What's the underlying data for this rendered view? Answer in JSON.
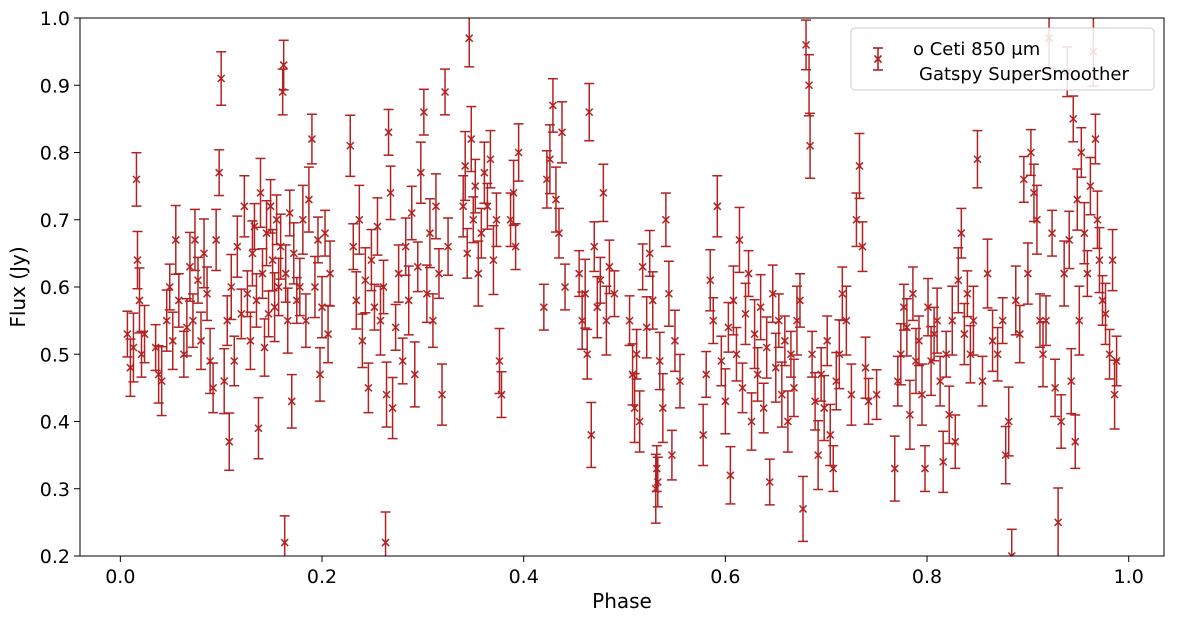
{
  "chart_data": {
    "type": "scatter",
    "xlabel": "Phase",
    "ylabel": "Flux (Jy)",
    "xlim": [
      -0.04,
      1.035
    ],
    "ylim": [
      0.2,
      1.0
    ],
    "xticks": [
      "0.0",
      "0.2",
      "0.4",
      "0.6",
      "0.8",
      "1.0"
    ],
    "yticks": [
      "0.2",
      "0.3",
      "0.4",
      "0.5",
      "0.6",
      "0.7",
      "0.8",
      "0.9",
      "1.0"
    ],
    "grid": false,
    "legend": {
      "placement": "top-right",
      "entries": [
        "o Ceti 850 μm",
        "Gatspy SuperSmoother"
      ]
    },
    "marker": "x",
    "error_bar_typical": 0.04,
    "series": [
      {
        "name": "o Ceti 850 μm",
        "color": "#b22222",
        "points": [
          [
            0.007,
            0.53
          ],
          [
            0.01,
            0.48
          ],
          [
            0.013,
            0.51
          ],
          [
            0.016,
            0.76
          ],
          [
            0.017,
            0.64
          ],
          [
            0.019,
            0.58
          ],
          [
            0.021,
            0.5
          ],
          [
            0.024,
            0.53
          ],
          [
            0.035,
            0.51
          ],
          [
            0.038,
            0.47
          ],
          [
            0.041,
            0.46
          ],
          [
            0.046,
            0.55
          ],
          [
            0.049,
            0.6
          ],
          [
            0.052,
            0.52
          ],
          [
            0.055,
            0.67
          ],
          [
            0.058,
            0.58
          ],
          [
            0.063,
            0.5
          ],
          [
            0.066,
            0.54
          ],
          [
            0.069,
            0.63
          ],
          [
            0.072,
            0.55
          ],
          [
            0.074,
            0.67
          ],
          [
            0.077,
            0.61
          ],
          [
            0.08,
            0.52
          ],
          [
            0.083,
            0.65
          ],
          [
            0.086,
            0.59
          ],
          [
            0.089,
            0.49
          ],
          [
            0.092,
            0.45
          ],
          [
            0.095,
            0.67
          ],
          [
            0.098,
            0.77
          ],
          [
            0.1,
            0.91
          ],
          [
            0.103,
            0.46
          ],
          [
            0.106,
            0.55
          ],
          [
            0.108,
            0.37
          ],
          [
            0.11,
            0.6
          ],
          [
            0.113,
            0.49
          ],
          [
            0.116,
            0.66
          ],
          [
            0.12,
            0.56
          ],
          [
            0.123,
            0.72
          ],
          [
            0.126,
            0.59
          ],
          [
            0.129,
            0.52
          ],
          [
            0.131,
            0.65
          ],
          [
            0.133,
            0.69
          ],
          [
            0.135,
            0.58
          ],
          [
            0.137,
            0.39
          ],
          [
            0.139,
            0.74
          ],
          [
            0.141,
            0.62
          ],
          [
            0.143,
            0.51
          ],
          [
            0.145,
            0.68
          ],
          [
            0.147,
            0.56
          ],
          [
            0.149,
            0.72
          ],
          [
            0.151,
            0.64
          ],
          [
            0.153,
            0.57
          ],
          [
            0.155,
            0.7
          ],
          [
            0.157,
            0.6
          ],
          [
            0.159,
            0.66
          ],
          [
            0.161,
            0.89
          ],
          [
            0.162,
            0.93
          ],
          [
            0.163,
            0.22
          ],
          [
            0.164,
            0.62
          ],
          [
            0.166,
            0.55
          ],
          [
            0.168,
            0.71
          ],
          [
            0.17,
            0.43
          ],
          [
            0.172,
            0.65
          ],
          [
            0.175,
            0.58
          ],
          [
            0.178,
            0.6
          ],
          [
            0.181,
            0.7
          ],
          [
            0.184,
            0.55
          ],
          [
            0.187,
            0.73
          ],
          [
            0.19,
            0.82
          ],
          [
            0.193,
            0.6
          ],
          [
            0.196,
            0.67
          ],
          [
            0.198,
            0.47
          ],
          [
            0.2,
            0.57
          ],
          [
            0.203,
            0.68
          ],
          [
            0.206,
            0.53
          ],
          [
            0.208,
            0.62
          ],
          [
            0.228,
            0.81
          ],
          [
            0.231,
            0.66
          ],
          [
            0.234,
            0.58
          ],
          [
            0.237,
            0.7
          ],
          [
            0.24,
            0.52
          ],
          [
            0.243,
            0.61
          ],
          [
            0.246,
            0.45
          ],
          [
            0.249,
            0.64
          ],
          [
            0.252,
            0.57
          ],
          [
            0.255,
            0.69
          ],
          [
            0.258,
            0.55
          ],
          [
            0.261,
            0.6
          ],
          [
            0.263,
            0.22
          ],
          [
            0.264,
            0.44
          ],
          [
            0.266,
            0.83
          ],
          [
            0.268,
            0.74
          ],
          [
            0.27,
            0.42
          ],
          [
            0.273,
            0.54
          ],
          [
            0.276,
            0.62
          ],
          [
            0.28,
            0.49
          ],
          [
            0.283,
            0.66
          ],
          [
            0.286,
            0.58
          ],
          [
            0.289,
            0.71
          ],
          [
            0.292,
            0.47
          ],
          [
            0.295,
            0.63
          ],
          [
            0.298,
            0.77
          ],
          [
            0.301,
            0.86
          ],
          [
            0.304,
            0.59
          ],
          [
            0.307,
            0.68
          ],
          [
            0.31,
            0.55
          ],
          [
            0.313,
            0.72
          ],
          [
            0.316,
            0.62
          ],
          [
            0.319,
            0.44
          ],
          [
            0.322,
            0.89
          ],
          [
            0.325,
            0.66
          ],
          [
            0.34,
            0.72
          ],
          [
            0.342,
            0.78
          ],
          [
            0.344,
            0.65
          ],
          [
            0.346,
            0.97
          ],
          [
            0.348,
            0.82
          ],
          [
            0.35,
            0.7
          ],
          [
            0.352,
            0.75
          ],
          [
            0.355,
            0.62
          ],
          [
            0.358,
            0.68
          ],
          [
            0.361,
            0.77
          ],
          [
            0.364,
            0.72
          ],
          [
            0.367,
            0.79
          ],
          [
            0.37,
            0.64
          ],
          [
            0.373,
            0.7
          ],
          [
            0.376,
            0.49
          ],
          [
            0.378,
            0.44
          ],
          [
            0.387,
            0.7
          ],
          [
            0.39,
            0.74
          ],
          [
            0.392,
            0.66
          ],
          [
            0.395,
            0.8
          ],
          [
            0.42,
            0.57
          ],
          [
            0.423,
            0.76
          ],
          [
            0.426,
            0.79
          ],
          [
            0.429,
            0.87
          ],
          [
            0.432,
            0.73
          ],
          [
            0.435,
            0.68
          ],
          [
            0.438,
            0.83
          ],
          [
            0.441,
            0.6
          ],
          [
            0.455,
            0.62
          ],
          [
            0.458,
            0.55
          ],
          [
            0.461,
            0.59
          ],
          [
            0.463,
            0.5
          ],
          [
            0.465,
            0.86
          ],
          [
            0.467,
            0.38
          ],
          [
            0.47,
            0.66
          ],
          [
            0.473,
            0.57
          ],
          [
            0.476,
            0.61
          ],
          [
            0.479,
            0.74
          ],
          [
            0.482,
            0.55
          ],
          [
            0.485,
            0.63
          ],
          [
            0.49,
            0.59
          ],
          [
            0.505,
            0.55
          ],
          [
            0.508,
            0.47
          ],
          [
            0.51,
            0.42
          ],
          [
            0.512,
            0.5
          ],
          [
            0.515,
            0.4
          ],
          [
            0.518,
            0.63
          ],
          [
            0.522,
            0.54
          ],
          [
            0.525,
            0.65
          ],
          [
            0.528,
            0.58
          ],
          [
            0.531,
            0.3
          ],
          [
            0.532,
            0.33
          ],
          [
            0.533,
            0.31
          ],
          [
            0.535,
            0.49
          ],
          [
            0.538,
            0.42
          ],
          [
            0.541,
            0.7
          ],
          [
            0.544,
            0.59
          ],
          [
            0.547,
            0.35
          ],
          [
            0.55,
            0.52
          ],
          [
            0.555,
            0.46
          ],
          [
            0.578,
            0.38
          ],
          [
            0.581,
            0.47
          ],
          [
            0.585,
            0.61
          ],
          [
            0.588,
            0.55
          ],
          [
            0.592,
            0.72
          ],
          [
            0.596,
            0.49
          ],
          [
            0.6,
            0.43
          ],
          [
            0.603,
            0.54
          ],
          [
            0.605,
            0.32
          ],
          [
            0.608,
            0.58
          ],
          [
            0.611,
            0.5
          ],
          [
            0.614,
            0.67
          ],
          [
            0.617,
            0.45
          ],
          [
            0.62,
            0.56
          ],
          [
            0.623,
            0.62
          ],
          [
            0.626,
            0.4
          ],
          [
            0.629,
            0.53
          ],
          [
            0.632,
            0.47
          ],
          [
            0.635,
            0.57
          ],
          [
            0.638,
            0.42
          ],
          [
            0.641,
            0.51
          ],
          [
            0.644,
            0.31
          ],
          [
            0.647,
            0.59
          ],
          [
            0.65,
            0.48
          ],
          [
            0.653,
            0.55
          ],
          [
            0.656,
            0.44
          ],
          [
            0.659,
            0.52
          ],
          [
            0.662,
            0.4
          ],
          [
            0.665,
            0.5
          ],
          [
            0.668,
            0.45
          ],
          [
            0.671,
            0.55
          ],
          [
            0.674,
            0.58
          ],
          [
            0.677,
            0.27
          ],
          [
            0.68,
            0.96
          ],
          [
            0.683,
            0.9
          ],
          [
            0.684,
            0.81
          ],
          [
            0.686,
            0.5
          ],
          [
            0.689,
            0.43
          ],
          [
            0.692,
            0.35
          ],
          [
            0.695,
            0.47
          ],
          [
            0.698,
            0.42
          ],
          [
            0.701,
            0.52
          ],
          [
            0.704,
            0.38
          ],
          [
            0.707,
            0.33
          ],
          [
            0.71,
            0.46
          ],
          [
            0.713,
            0.5
          ],
          [
            0.716,
            0.59
          ],
          [
            0.72,
            0.55
          ],
          [
            0.725,
            0.44
          ],
          [
            0.73,
            0.7
          ],
          [
            0.733,
            0.78
          ],
          [
            0.736,
            0.66
          ],
          [
            0.739,
            0.48
          ],
          [
            0.742,
            0.43
          ],
          [
            0.75,
            0.44
          ],
          [
            0.768,
            0.33
          ],
          [
            0.771,
            0.46
          ],
          [
            0.774,
            0.5
          ],
          [
            0.777,
            0.57
          ],
          [
            0.78,
            0.54
          ],
          [
            0.783,
            0.41
          ],
          [
            0.786,
            0.59
          ],
          [
            0.789,
            0.49
          ],
          [
            0.792,
            0.52
          ],
          [
            0.795,
            0.44
          ],
          [
            0.798,
            0.33
          ],
          [
            0.801,
            0.57
          ],
          [
            0.804,
            0.49
          ],
          [
            0.807,
            0.53
          ],
          [
            0.81,
            0.55
          ],
          [
            0.813,
            0.46
          ],
          [
            0.816,
            0.34
          ],
          [
            0.819,
            0.5
          ],
          [
            0.822,
            0.41
          ],
          [
            0.825,
            0.55
          ],
          [
            0.828,
            0.37
          ],
          [
            0.831,
            0.61
          ],
          [
            0.834,
            0.68
          ],
          [
            0.837,
            0.53
          ],
          [
            0.84,
            0.59
          ],
          [
            0.843,
            0.5
          ],
          [
            0.846,
            0.55
          ],
          [
            0.85,
            0.79
          ],
          [
            0.855,
            0.46
          ],
          [
            0.86,
            0.62
          ],
          [
            0.865,
            0.52
          ],
          [
            0.87,
            0.5
          ],
          [
            0.875,
            0.55
          ],
          [
            0.878,
            0.35
          ],
          [
            0.881,
            0.4
          ],
          [
            0.884,
            0.2
          ],
          [
            0.888,
            0.58
          ],
          [
            0.892,
            0.53
          ],
          [
            0.896,
            0.76
          ],
          [
            0.9,
            0.62
          ],
          [
            0.903,
            0.8
          ],
          [
            0.906,
            0.74
          ],
          [
            0.909,
            0.7
          ],
          [
            0.912,
            0.55
          ],
          [
            0.915,
            0.5
          ],
          [
            0.918,
            0.55
          ],
          [
            0.921,
            0.97
          ],
          [
            0.924,
            0.68
          ],
          [
            0.927,
            0.45
          ],
          [
            0.93,
            0.25
          ],
          [
            0.933,
            0.4
          ],
          [
            0.936,
            0.62
          ],
          [
            0.939,
            0.92
          ],
          [
            0.941,
            0.67
          ],
          [
            0.943,
            0.46
          ],
          [
            0.945,
            0.85
          ],
          [
            0.947,
            0.37
          ],
          [
            0.949,
            0.73
          ],
          [
            0.951,
            0.55
          ],
          [
            0.953,
            0.8
          ],
          [
            0.956,
            0.68
          ],
          [
            0.959,
            0.62
          ],
          [
            0.962,
            0.75
          ],
          [
            0.965,
            0.95
          ],
          [
            0.967,
            0.82
          ],
          [
            0.969,
            0.7
          ],
          [
            0.971,
            0.64
          ],
          [
            0.974,
            0.58
          ],
          [
            0.977,
            0.56
          ],
          [
            0.981,
            0.5
          ],
          [
            0.984,
            0.64
          ],
          [
            0.986,
            0.44
          ],
          [
            0.988,
            0.49
          ]
        ]
      }
    ]
  }
}
